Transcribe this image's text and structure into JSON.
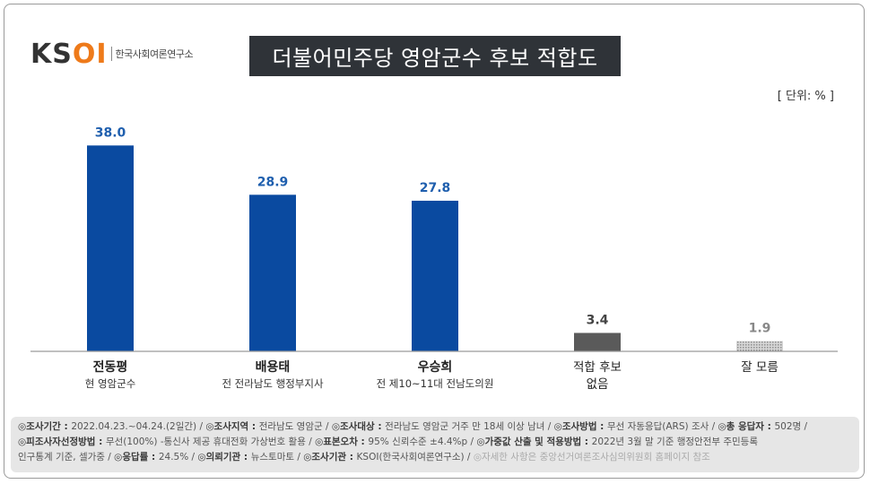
{
  "brand": {
    "logo_mark": "KSOI",
    "logo_text": "한국사회여론연구소"
  },
  "title": "더불어민주당 영암군수 후보 적합도",
  "unit": "[ 단위: % ]",
  "colors": {
    "primary_bar": "#0a4aa0",
    "value_primary": "#1f5fae",
    "no_candidate_bar": "#5a5a5a",
    "dont_know_bar": "#bdbdbd"
  },
  "chart_data": {
    "type": "bar",
    "categories": [
      "전동평",
      "배용태",
      "우승희",
      "적합 후보 없음",
      "잘 모름"
    ],
    "category_lines": [
      [
        "전동평"
      ],
      [
        "배용태"
      ],
      [
        "우승희"
      ],
      [
        "적합 후보",
        "없음"
      ],
      [
        "잘 모름"
      ]
    ],
    "subtitles": [
      "현 영암군수",
      "전 전라남도 행정부지사",
      "전 제10~11대 전남도의원",
      "",
      ""
    ],
    "values": [
      38.0,
      28.9,
      27.8,
      3.4,
      1.9
    ],
    "value_labels": [
      "38.0",
      "28.9",
      "27.8",
      "3.4",
      "1.9"
    ],
    "ylim": [
      0,
      45
    ],
    "grid": false
  },
  "notes": [
    [
      {
        "label": "◎조사기간 : ",
        "text": "2022.04.23.~04.24.(2일간) / "
      },
      {
        "label": "◎조사지역 : ",
        "text": "전라남도 영암군 / "
      },
      {
        "label": "◎조사대상 : ",
        "text": "전라남도 영암군 거주 만 18세 이상 남녀 / "
      },
      {
        "label": "◎조사방법 : ",
        "text": "무선 자동응답(ARS) 조사 / "
      },
      {
        "label": "◎총 응답자 : ",
        "text": "502명 /"
      }
    ],
    [
      {
        "label": "◎피조사자선정방법 : ",
        "text": "무선(100%) -통신사 제공 휴대전화 가상번호 활용 / "
      },
      {
        "label": "◎표본오차 : ",
        "text": "95% 신뢰수준 ±4.4%p / "
      },
      {
        "label": "◎가중값 산출 및 적용방법 : ",
        "text": "2022년 3월 말 기준 행정안전부 주민등록"
      }
    ],
    [
      {
        "label": "",
        "text": "인구통계 기준, 셀가중 / "
      },
      {
        "label": "◎응답률 : ",
        "text": "24.5% / "
      },
      {
        "label": "◎의뢰기관 : ",
        "text": "뉴스토마토 / "
      },
      {
        "label": "◎조사기관 : ",
        "text": "KSOI(한국사회여론연구소) / "
      },
      {
        "label": "",
        "text": "◎자세한 사항은 중앙선거여론조사심의위원회 홈페이지 참조",
        "dim": true
      }
    ]
  ]
}
